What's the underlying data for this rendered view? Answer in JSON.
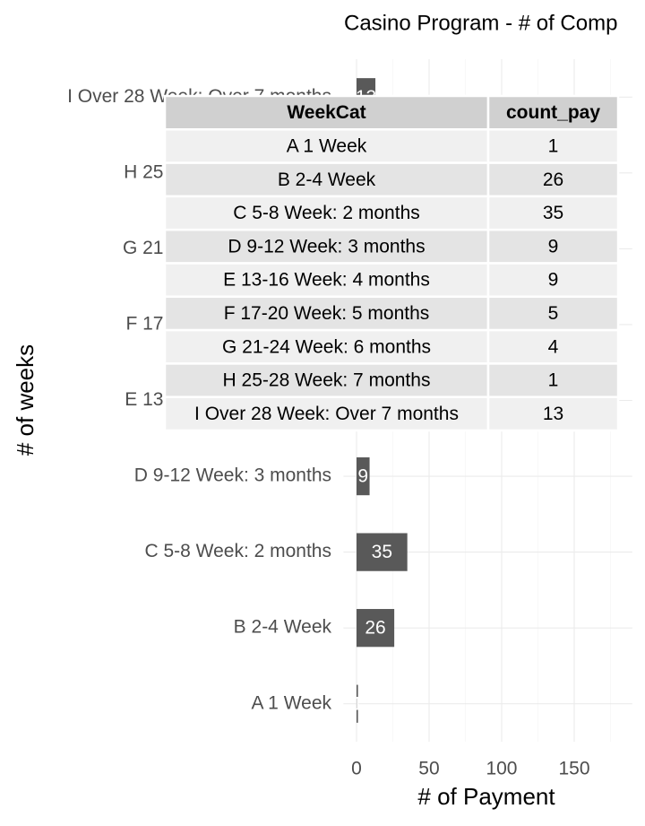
{
  "chart_data": {
    "type": "bar",
    "orientation": "horizontal",
    "title": "Casino Program - # of Comp",
    "x_label": "# of Payment",
    "y_label": "# of weeks",
    "categories": [
      "A 1 Week",
      "B 2-4 Week",
      "C 5-8 Week: 2 months",
      "D 9-12 Week: 3 months",
      "E 13-16 Week: 4 months",
      "F 17-20 Week: 5 months",
      "G 21-24 Week: 6 months",
      "H 25-28 Week: 7 months",
      "I Over 28 Week: Over 7 months"
    ],
    "values": [
      1,
      26,
      35,
      9,
      9,
      5,
      4,
      1,
      13
    ],
    "color": "#595959",
    "label_color": "#ffffff",
    "xlim": [
      -9,
      190
    ],
    "xticks": [
      0,
      50,
      100,
      150
    ],
    "xminor": [
      25,
      75,
      125,
      175
    ],
    "grid": true
  },
  "table": {
    "columns": [
      "WeekCat",
      "count_pay"
    ],
    "rows": [
      [
        "A 1 Week",
        1
      ],
      [
        "B 2-4 Week",
        26
      ],
      [
        "C 5-8 Week: 2 months",
        35
      ],
      [
        "D 9-12 Week: 3 months",
        9
      ],
      [
        "E 13-16 Week: 4 months",
        9
      ],
      [
        "F 17-20 Week: 5 months",
        5
      ],
      [
        "G 21-24 Week: 6 months",
        4
      ],
      [
        "H 25-28 Week: 7 months",
        1
      ],
      [
        "I Over 28 Week: Over 7 months",
        13
      ]
    ]
  }
}
